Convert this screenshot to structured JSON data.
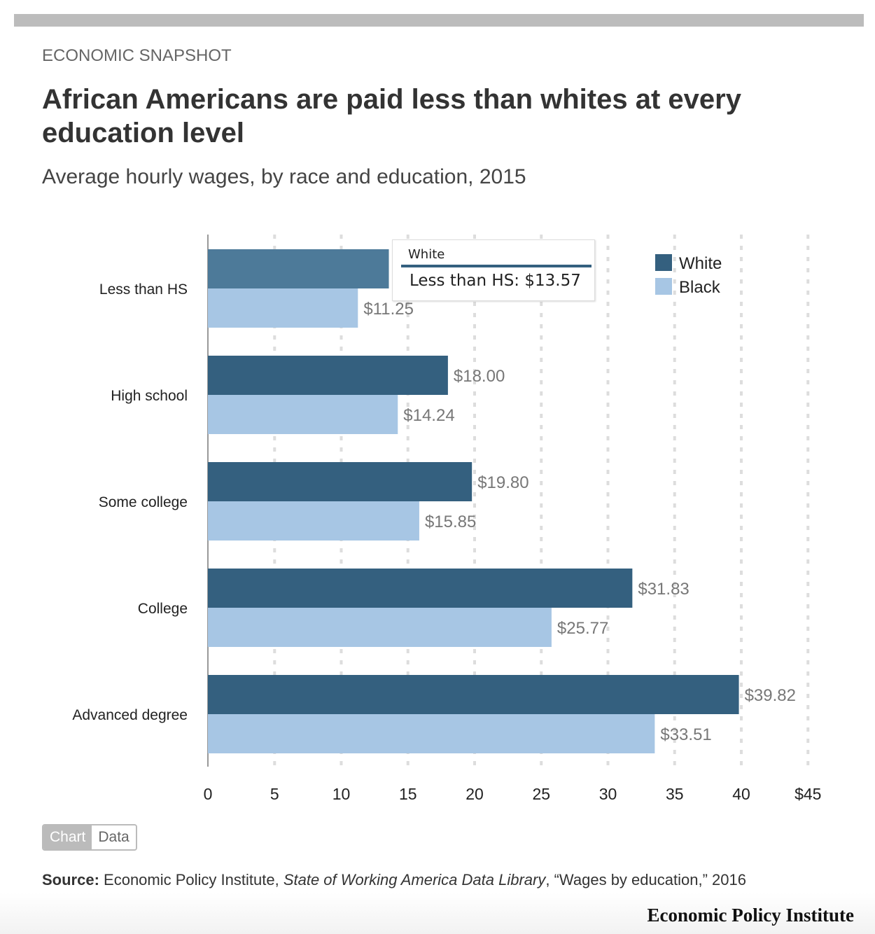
{
  "header": {
    "kicker": "ECONOMIC SNAPSHOT",
    "title": "African Americans are paid less than whites at every education level",
    "subtitle": "Average hourly wages, by race and education, 2015"
  },
  "chart_data": {
    "type": "bar",
    "orientation": "horizontal",
    "categories": [
      "Less than HS",
      "High school",
      "Some college",
      "College",
      "Advanced degree"
    ],
    "series": [
      {
        "name": "White",
        "color": "#34607f",
        "values": [
          13.57,
          18.0,
          19.8,
          31.83,
          39.82
        ]
      },
      {
        "name": "Black",
        "color": "#a7c6e4",
        "values": [
          11.25,
          14.24,
          15.85,
          25.77,
          33.51
        ]
      }
    ],
    "xlim": [
      0,
      45
    ],
    "xticks": [
      0,
      5,
      10,
      15,
      20,
      25,
      30,
      35,
      40,
      45
    ],
    "xtick_labels": [
      "0",
      "5",
      "10",
      "15",
      "20",
      "25",
      "30",
      "35",
      "40",
      "$45"
    ],
    "grid": true,
    "legend": "top-right",
    "data_label_prefix": "$"
  },
  "tooltip": {
    "series": "White",
    "text": "Less than HS: $13.57"
  },
  "toggle": {
    "chart": "Chart",
    "data": "Data"
  },
  "source": {
    "label": "Source:",
    "text1": " Economic Policy Institute, ",
    "italic": "State of Working America Data Library",
    "text2": ", “Wages by education,” 2016"
  },
  "footer": {
    "logo": "Economic Policy Institute"
  }
}
